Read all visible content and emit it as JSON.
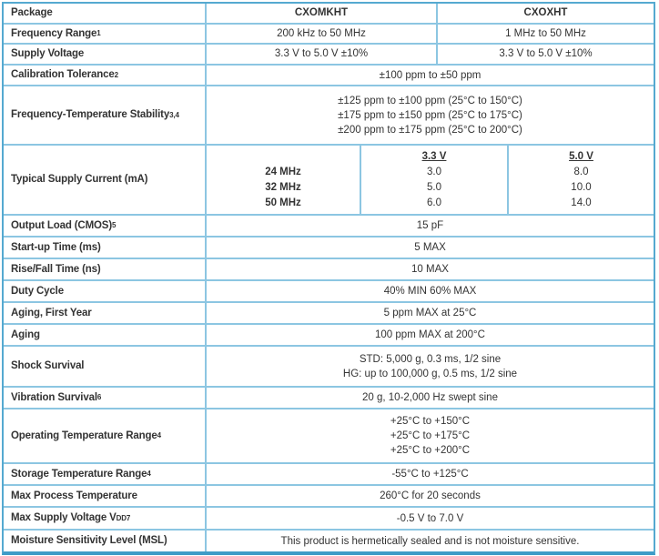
{
  "colors": {
    "border_inner": "#8cc6e2",
    "border_outer": "#55a9d0",
    "border_bottom": "#3f9cc7",
    "text": "#333333"
  },
  "table": {
    "rows": [
      {
        "type": "two_col",
        "label": "Package",
        "values": [
          "CXOMKHT",
          "CXOXHT"
        ],
        "values_bold": true
      },
      {
        "type": "two_col",
        "label": "Frequency Range",
        "label_sup": "1",
        "values": [
          "200 kHz to 50 MHz",
          "1 MHz to 50 MHz"
        ]
      },
      {
        "type": "two_col",
        "label": "Supply Voltage",
        "values": [
          "3.3 V to 5.0 V ±10%",
          "3.3 V to 5.0 V ±10%"
        ]
      },
      {
        "type": "span",
        "label": "Calibration Tolerance",
        "label_sup": "2",
        "lines": [
          "±100 ppm to ±50 ppm"
        ]
      },
      {
        "type": "span",
        "label": "Frequency-Temperature Stability",
        "label_sup": "3,4",
        "lines": [
          "±125 ppm to ±100 ppm (25°C to 150°C)",
          "±175 ppm to ±150 ppm (25°C to 175°C)",
          "±200 ppm to ±175 ppm (25°C to 200°C)"
        ]
      },
      {
        "type": "current",
        "label": "Typical Supply Current (mA)",
        "freq_rows": [
          "24 MHz",
          "32 MHz",
          "50 MHz"
        ],
        "col_headers": [
          "3.3 V",
          "5.0 V"
        ],
        "values": [
          [
            "3.0",
            "8.0"
          ],
          [
            "5.0",
            "10.0"
          ],
          [
            "6.0",
            "14.0"
          ]
        ]
      },
      {
        "type": "span",
        "label": "Output Load (CMOS)",
        "label_sup": "5",
        "lines": [
          "15 pF"
        ]
      },
      {
        "type": "span",
        "label": "Start-up Time (ms)",
        "lines": [
          "5 MAX"
        ]
      },
      {
        "type": "span",
        "label": "Rise/Fall Time (ns)",
        "lines": [
          "10 MAX"
        ]
      },
      {
        "type": "span",
        "label": "Duty Cycle",
        "lines": [
          "40% MIN 60% MAX"
        ]
      },
      {
        "type": "span",
        "label": "Aging, First Year",
        "lines": [
          "5 ppm MAX at 25°C"
        ]
      },
      {
        "type": "span",
        "label": "Aging",
        "lines": [
          "100 ppm MAX at 200°C"
        ]
      },
      {
        "type": "span",
        "label": "Shock Survival",
        "lines": [
          "STD: 5,000 g, 0.3 ms, 1/2 sine",
          "HG: up to 100,000 g, 0.5 ms, 1/2 sine"
        ]
      },
      {
        "type": "span",
        "label": "Vibration Survival",
        "label_sup": "6",
        "lines": [
          "20 g, 10-2,000 Hz swept sine"
        ]
      },
      {
        "type": "span",
        "label": "Operating Temperature Range",
        "label_sup": "4",
        "lines": [
          "+25°C to +150°C",
          "+25°C to +175°C",
          "+25°C to +200°C"
        ]
      },
      {
        "type": "span",
        "label": "Storage Temperature Range",
        "label_sup": "4",
        "lines": [
          "-55°C to +125°C"
        ]
      },
      {
        "type": "span",
        "label": "Max Process Temperature",
        "lines": [
          "260°C for 20 seconds"
        ]
      },
      {
        "type": "span",
        "label": "Max Supply Voltage V",
        "label_sub": "DD",
        "label_sup": "7",
        "lines": [
          "-0.5 V to 7.0 V"
        ]
      },
      {
        "type": "span",
        "label": "Moisture Sensitivity Level (MSL)",
        "lines": [
          "This product is hermetically sealed and is not moisture sensitive."
        ]
      }
    ]
  }
}
